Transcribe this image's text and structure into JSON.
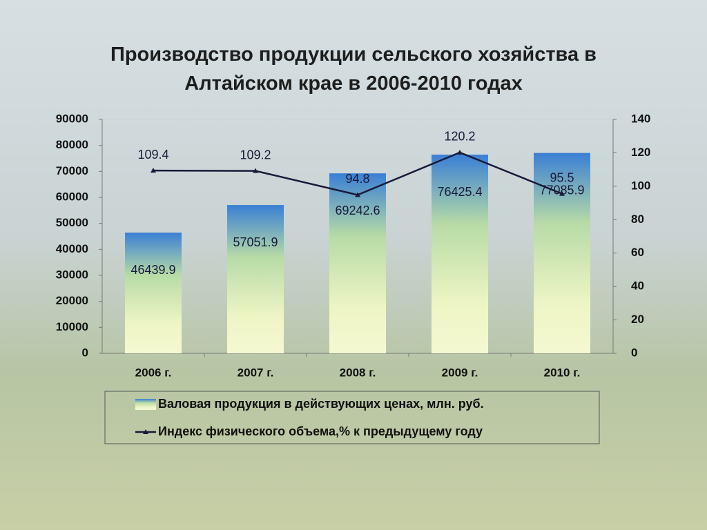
{
  "chart_data": {
    "type": "bar",
    "title": "Производство продукции сельского хозяйства в Алтайском крае в 2006-2010 годах",
    "categories": [
      "2006 г.",
      "2007 г.",
      "2008 г.",
      "2009 г.",
      "2010 г."
    ],
    "series": [
      {
        "name": "Валовая продукция в действующих ценах, млн. руб.",
        "type": "bar",
        "color": "#3a7fd5",
        "values": [
          46439.9,
          57051.9,
          69242.6,
          76425.4,
          77085.9
        ]
      },
      {
        "name": "Индекс физического объема,% к предыдущему году",
        "type": "line",
        "axis": "y2",
        "color": "#1a1a3a",
        "values": [
          109.4,
          109.2,
          94.8,
          120.2,
          95.5
        ]
      }
    ],
    "ylim": [
      0,
      90000
    ],
    "yticks": [
      0,
      10000,
      20000,
      30000,
      40000,
      50000,
      60000,
      70000,
      80000,
      90000
    ],
    "y2lim": [
      0,
      140
    ],
    "y2ticks": [
      0,
      20,
      40,
      60,
      80,
      100,
      120,
      140
    ],
    "grid": false,
    "legend": "bottom"
  }
}
